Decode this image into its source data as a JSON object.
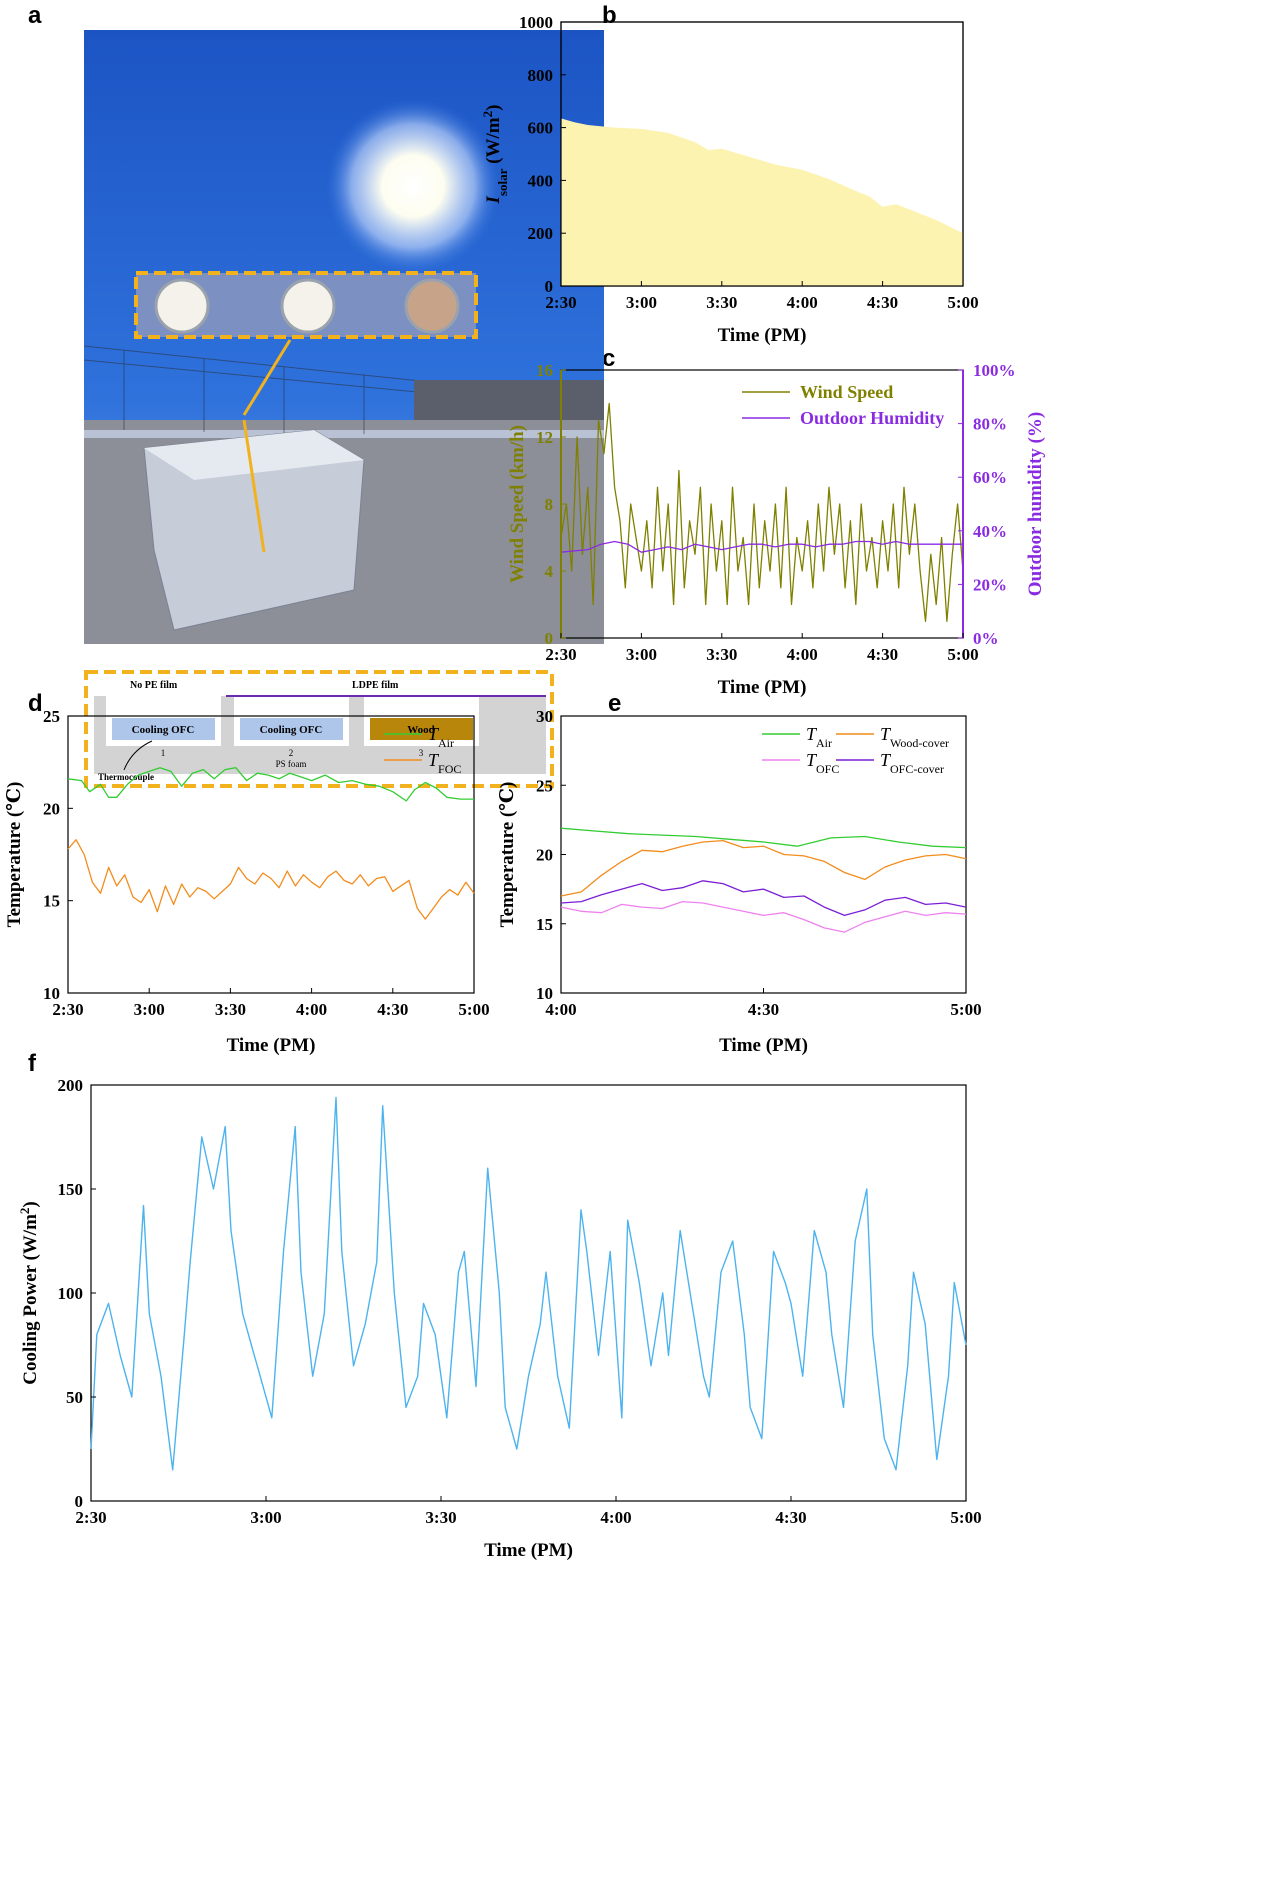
{
  "panels": {
    "a": "a",
    "b": "b",
    "c": "c",
    "d": "d",
    "e": "e",
    "f": "f"
  },
  "photo": {
    "inset_labels": {
      "no_pe": "No PE film",
      "ldpe": "LDPE film",
      "cell1": "Cooling OFC",
      "cell2": "Cooling OFC",
      "cell3": "Wood",
      "n1": "1",
      "n2": "2",
      "n3": "3",
      "foam": "PS foam",
      "thermocouple": "Thermocouple"
    },
    "colors": {
      "sky_top": "#1f5fd0",
      "sky_bottom": "#3a7ee8",
      "dash": "#f2b21e",
      "wood": "#b8860b",
      "cell": "#aec6ea",
      "ldpe": "#6a2bb0"
    }
  },
  "chart_data": [
    {
      "id": "b",
      "type": "area",
      "xlabel": "Time (PM)",
      "ylabel_main": "I",
      "ylabel_sub": "solar",
      "ylabel_unit": " (W/m",
      "ylabel_sup": "2",
      "ylabel_close": ")",
      "xticks": [
        "2:30",
        "3:00",
        "3:30",
        "4:00",
        "4:30",
        "5:00"
      ],
      "yticks": [
        "0",
        "200",
        "400",
        "600",
        "800",
        "1000"
      ],
      "xlim": [
        0,
        150
      ],
      "ylim": [
        0,
        1000
      ],
      "fill_color": "#fdf3b0",
      "x": [
        0,
        5,
        10,
        20,
        30,
        40,
        50,
        55,
        60,
        70,
        80,
        90,
        100,
        110,
        115,
        120,
        125,
        130,
        140,
        150
      ],
      "y": [
        635,
        620,
        610,
        600,
        595,
        580,
        545,
        515,
        520,
        490,
        460,
        440,
        405,
        360,
        340,
        300,
        310,
        290,
        250,
        200
      ]
    },
    {
      "id": "c",
      "type": "line",
      "xlabel": "Time (PM)",
      "ylabel_left": "Wind Speed (km/h)",
      "ylabel_right": "Outdoor humidity (%)",
      "xticks": [
        "2:30",
        "3:00",
        "3:30",
        "4:00",
        "4:30",
        "5:00"
      ],
      "yticks_left": [
        "0",
        "4",
        "8",
        "12",
        "16"
      ],
      "yticks_right": [
        "0%",
        "20%",
        "40%",
        "60%",
        "80%",
        "100%"
      ],
      "xlim": [
        0,
        150
      ],
      "ylim_left": [
        0,
        16
      ],
      "ylim_right": [
        0,
        100
      ],
      "series": [
        {
          "name": "Wind Speed",
          "color": "#808000",
          "axis": "left",
          "x": [
            0,
            2,
            4,
            6,
            8,
            10,
            12,
            14,
            16,
            18,
            20,
            22,
            24,
            26,
            28,
            30,
            32,
            34,
            36,
            38,
            40,
            42,
            44,
            46,
            48,
            50,
            52,
            54,
            56,
            58,
            60,
            62,
            64,
            66,
            68,
            70,
            72,
            74,
            76,
            78,
            80,
            82,
            84,
            86,
            88,
            90,
            92,
            94,
            96,
            98,
            100,
            102,
            104,
            106,
            108,
            110,
            112,
            114,
            116,
            118,
            120,
            122,
            124,
            126,
            128,
            130,
            132,
            134,
            136,
            138,
            140,
            142,
            144,
            146,
            148,
            150
          ],
          "y": [
            6,
            8,
            4,
            12,
            5,
            9,
            2,
            13,
            11,
            14,
            9,
            7,
            3,
            8,
            6,
            4,
            7,
            3,
            9,
            4,
            8,
            2,
            10,
            3,
            7,
            5,
            9,
            2,
            8,
            4,
            7,
            2,
            9,
            4,
            6,
            2,
            8,
            3,
            7,
            4,
            8,
            3,
            9,
            2,
            6,
            4,
            7,
            3,
            8,
            4,
            9,
            5,
            8,
            3,
            7,
            2,
            8,
            4,
            6,
            3,
            7,
            4,
            8,
            3,
            9,
            5,
            8,
            4,
            1,
            5,
            2,
            6,
            1,
            5,
            8,
            4
          ]
        },
        {
          "name": "Outdoor Humidity",
          "color": "#8a2be2",
          "axis": "right",
          "x": [
            0,
            10,
            15,
            20,
            25,
            30,
            35,
            40,
            45,
            50,
            55,
            60,
            65,
            70,
            75,
            80,
            85,
            90,
            95,
            100,
            105,
            110,
            115,
            120,
            125,
            130,
            135,
            140,
            145,
            150
          ],
          "y": [
            32,
            33,
            35,
            36,
            35,
            32,
            33,
            34,
            33,
            35,
            34,
            33,
            34,
            35,
            35,
            34,
            35,
            35,
            34,
            35,
            35,
            36,
            36,
            35,
            36,
            35,
            35,
            35,
            35,
            35
          ]
        }
      ],
      "legend_position": "top-right"
    },
    {
      "id": "d",
      "type": "line",
      "xlabel": "Time (PM)",
      "ylabel": "Temperature (℃)",
      "xticks": [
        "2:30",
        "3:00",
        "3:30",
        "4:00",
        "4:30",
        "5:00"
      ],
      "yticks": [
        "10",
        "15",
        "20",
        "25"
      ],
      "xlim": [
        0,
        150
      ],
      "ylim": [
        10,
        25
      ],
      "legend_position": "top-right",
      "series": [
        {
          "name": "T",
          "sub": "Air",
          "color": "#33cc33",
          "x": [
            0,
            5,
            8,
            12,
            15,
            18,
            22,
            26,
            30,
            34,
            38,
            42,
            46,
            50,
            54,
            58,
            62,
            66,
            70,
            74,
            78,
            82,
            86,
            90,
            95,
            100,
            105,
            110,
            115,
            120,
            125,
            128,
            132,
            136,
            140,
            145,
            150
          ],
          "y": [
            21.6,
            21.5,
            20.9,
            21.3,
            20.6,
            20.6,
            21.3,
            21.8,
            22.0,
            22.2,
            22.0,
            21.2,
            21.9,
            22.1,
            21.6,
            22.1,
            22.2,
            21.5,
            21.9,
            21.8,
            21.6,
            21.9,
            21.7,
            21.5,
            21.8,
            21.4,
            21.5,
            21.3,
            21.2,
            20.9,
            20.4,
            21.0,
            21.4,
            21.1,
            20.6,
            20.5,
            20.5
          ]
        },
        {
          "name": "T",
          "sub": "FOC",
          "color": "#f28c1c",
          "x": [
            0,
            3,
            6,
            9,
            12,
            15,
            18,
            21,
            24,
            27,
            30,
            33,
            36,
            39,
            42,
            45,
            48,
            51,
            54,
            57,
            60,
            63,
            66,
            69,
            72,
            75,
            78,
            81,
            84,
            87,
            90,
            93,
            96,
            99,
            102,
            105,
            108,
            111,
            114,
            117,
            120,
            123,
            126,
            129,
            132,
            135,
            138,
            141,
            144,
            147,
            150
          ],
          "y": [
            17.8,
            18.3,
            17.5,
            16.0,
            15.4,
            16.8,
            15.8,
            16.4,
            15.2,
            14.9,
            15.6,
            14.4,
            15.8,
            14.8,
            15.9,
            15.2,
            15.7,
            15.5,
            15.1,
            15.5,
            15.9,
            16.8,
            16.2,
            15.9,
            16.5,
            16.2,
            15.7,
            16.6,
            15.8,
            16.4,
            16.0,
            15.7,
            16.3,
            16.6,
            16.1,
            15.9,
            16.4,
            15.8,
            16.2,
            16.3,
            15.5,
            15.8,
            16.1,
            14.6,
            14.0,
            14.6,
            15.2,
            15.6,
            15.3,
            16.0,
            15.4
          ]
        }
      ]
    },
    {
      "id": "e",
      "type": "line",
      "xlabel": "Time (PM)",
      "ylabel": "Temperature (℃)",
      "xticks": [
        "4:00",
        "4:30",
        "5:00"
      ],
      "yticks": [
        "10",
        "15",
        "20",
        "25",
        "30"
      ],
      "xlim": [
        0,
        60
      ],
      "ylim": [
        10,
        30
      ],
      "legend_position": "top-right",
      "series": [
        {
          "name": "T",
          "sub": "Air",
          "color": "#33cc33",
          "x": [
            0,
            5,
            10,
            15,
            20,
            25,
            30,
            35,
            40,
            45,
            50,
            55,
            60
          ],
          "y": [
            21.9,
            21.7,
            21.5,
            21.4,
            21.3,
            21.1,
            20.9,
            20.6,
            21.2,
            21.3,
            20.9,
            20.6,
            20.5
          ]
        },
        {
          "name": "T",
          "sub": "Wood-cover",
          "color": "#f28c1c",
          "x": [
            0,
            3,
            6,
            9,
            12,
            15,
            18,
            21,
            24,
            27,
            30,
            33,
            36,
            39,
            42,
            45,
            48,
            51,
            54,
            57,
            60
          ],
          "y": [
            17.0,
            17.3,
            18.5,
            19.5,
            20.3,
            20.2,
            20.6,
            20.9,
            21.0,
            20.5,
            20.6,
            20.0,
            19.9,
            19.5,
            18.7,
            18.2,
            19.1,
            19.6,
            19.9,
            20.0,
            19.7
          ]
        },
        {
          "name": "T",
          "sub": "OFC",
          "color": "#ee82ee",
          "x": [
            0,
            3,
            6,
            9,
            12,
            15,
            18,
            21,
            24,
            27,
            30,
            33,
            36,
            39,
            42,
            45,
            48,
            51,
            54,
            57,
            60
          ],
          "y": [
            16.2,
            15.9,
            15.8,
            16.4,
            16.2,
            16.1,
            16.6,
            16.5,
            16.2,
            15.9,
            15.6,
            15.8,
            15.3,
            14.7,
            14.4,
            15.1,
            15.5,
            15.9,
            15.6,
            15.8,
            15.7
          ]
        },
        {
          "name": "T",
          "sub": "OFC-cover",
          "color": "#7b1fd6",
          "x": [
            0,
            3,
            6,
            9,
            12,
            15,
            18,
            21,
            24,
            27,
            30,
            33,
            36,
            39,
            42,
            45,
            48,
            51,
            54,
            57,
            60
          ],
          "y": [
            16.5,
            16.6,
            17.1,
            17.5,
            17.9,
            17.4,
            17.6,
            18.1,
            17.9,
            17.3,
            17.5,
            16.9,
            17.0,
            16.2,
            15.6,
            16.0,
            16.7,
            16.9,
            16.4,
            16.5,
            16.2
          ]
        }
      ]
    },
    {
      "id": "f",
      "type": "line",
      "xlabel": "Time (PM)",
      "ylabel_main": "Cooling Power (W/m",
      "ylabel_sup": "2",
      "ylabel_close": ")",
      "xticks": [
        "2:30",
        "3:00",
        "3:30",
        "4:00",
        "4:30",
        "5:00"
      ],
      "yticks": [
        "0",
        "50",
        "100",
        "150",
        "200"
      ],
      "xlim": [
        0,
        150
      ],
      "ylim": [
        0,
        200
      ],
      "series": [
        {
          "name": "Cooling Power",
          "color": "#4db3ee",
          "x": [
            0,
            1,
            3,
            5,
            7,
            9,
            10,
            12,
            14,
            16,
            17,
            19,
            21,
            23,
            24,
            26,
            28,
            29,
            31,
            33,
            35,
            36,
            38,
            40,
            42,
            43,
            45,
            47,
            49,
            50,
            52,
            54,
            56,
            57,
            59,
            61,
            63,
            64,
            66,
            68,
            70,
            71,
            73,
            75,
            77,
            78,
            80,
            82,
            84,
            85,
            87,
            89,
            91,
            92,
            94,
            96,
            98,
            99,
            101,
            103,
            105,
            106,
            108,
            110,
            112,
            113,
            115,
            117,
            119,
            120,
            122,
            124,
            126,
            127,
            129,
            131,
            133,
            134,
            136,
            138,
            140,
            141,
            143,
            145,
            147,
            148,
            150
          ],
          "y": [
            25,
            80,
            95,
            70,
            50,
            142,
            90,
            60,
            15,
            80,
            115,
            175,
            150,
            180,
            130,
            90,
            70,
            60,
            40,
            120,
            180,
            110,
            60,
            90,
            194,
            120,
            65,
            85,
            115,
            190,
            100,
            45,
            60,
            95,
            80,
            40,
            110,
            120,
            55,
            160,
            100,
            45,
            25,
            60,
            85,
            110,
            60,
            35,
            140,
            120,
            70,
            120,
            40,
            135,
            105,
            65,
            100,
            70,
            130,
            95,
            60,
            50,
            110,
            125,
            80,
            45,
            30,
            120,
            105,
            95,
            60,
            130,
            110,
            80,
            45,
            125,
            150,
            80,
            30,
            15,
            65,
            110,
            85,
            20,
            60,
            105,
            75
          ]
        }
      ]
    }
  ]
}
